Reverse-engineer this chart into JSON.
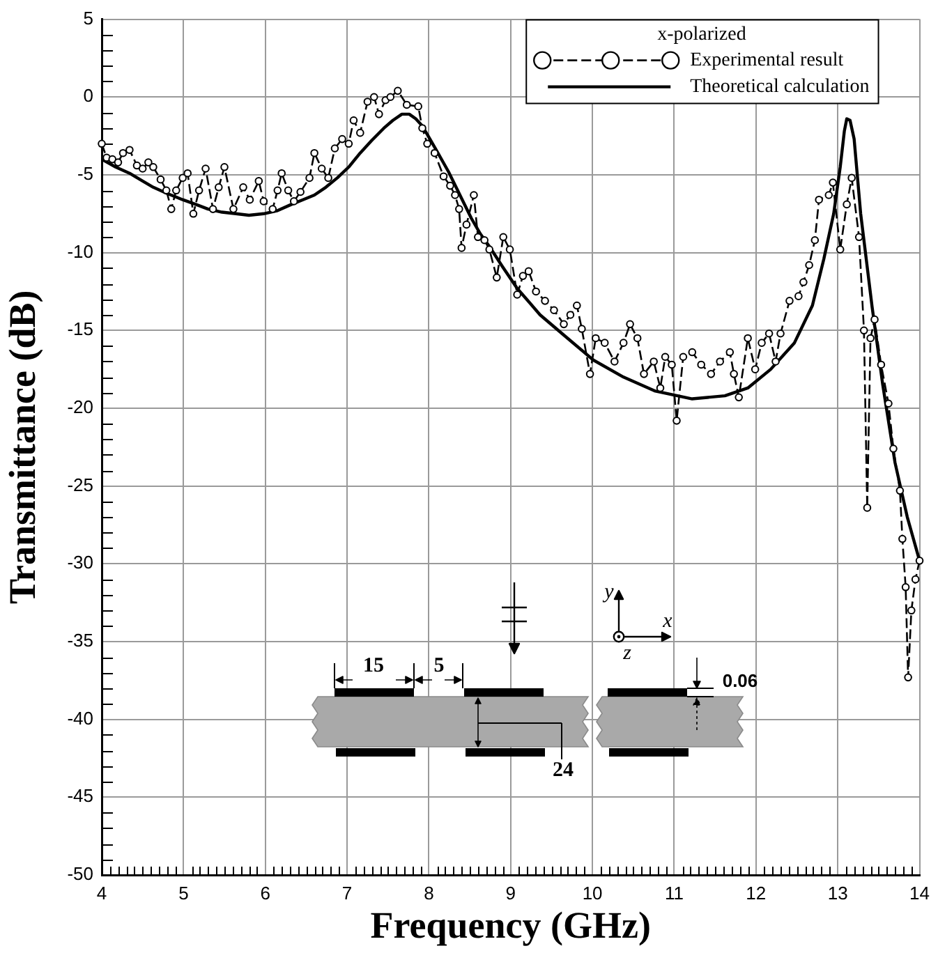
{
  "chart_data": {
    "type": "line",
    "xlabel": "Frequency (GHz)",
    "ylabel": "Transmittance (dB)",
    "legend_title": "x-polarized",
    "legend": "top right",
    "grid": true,
    "xlim": [
      4,
      14
    ],
    "ylim": [
      -50,
      5
    ],
    "xticks": [
      4,
      {
        "value": 4.1,
        "label": null
      },
      {
        "value": 4.2,
        "label": null
      },
      {
        "value": 4.3,
        "label": null
      },
      {
        "value": 4.4,
        "label": null
      },
      {
        "value": 4.5,
        "label": null
      },
      {
        "value": 4.6,
        "label": null
      },
      {
        "value": 4.7,
        "label": null
      },
      {
        "value": 4.8,
        "label": null
      },
      {
        "value": 4.9,
        "label": null
      },
      5,
      {
        "value": 5.1,
        "label": null
      },
      {
        "value": 5.2,
        "label": null
      },
      {
        "value": 5.3,
        "label": null
      },
      {
        "value": 5.4,
        "label": null
      },
      {
        "value": 5.5,
        "label": null
      },
      {
        "value": 5.6,
        "label": null
      },
      {
        "value": 5.7,
        "label": null
      },
      {
        "value": 5.8,
        "label": null
      },
      {
        "value": 5.9,
        "label": null
      },
      6,
      {
        "value": 6.1,
        "label": null
      },
      {
        "value": 6.2,
        "label": null
      },
      {
        "value": 6.3,
        "label": null
      },
      {
        "value": 6.4,
        "label": null
      },
      {
        "value": 6.5,
        "label": null
      },
      {
        "value": 6.6,
        "label": null
      },
      {
        "value": 6.7,
        "label": null
      },
      {
        "value": 6.8,
        "label": null
      },
      {
        "value": 6.9,
        "label": null
      },
      7,
      {
        "value": 7.1,
        "label": null
      },
      {
        "value": 7.2,
        "label": null
      },
      {
        "value": 7.3,
        "label": null
      },
      {
        "value": 7.4,
        "label": null
      },
      {
        "value": 7.5,
        "label": null
      },
      {
        "value": 7.6,
        "label": null
      },
      {
        "value": 7.7,
        "label": null
      },
      {
        "value": 7.8,
        "label": null
      },
      {
        "value": 7.9,
        "label": null
      },
      8,
      {
        "value": 8.1,
        "label": null
      },
      {
        "value": 8.2,
        "label": null
      },
      {
        "value": 8.3,
        "label": null
      },
      {
        "value": 8.4,
        "label": null
      },
      {
        "value": 8.5,
        "label": null
      },
      {
        "value": 8.6,
        "label": null
      },
      {
        "value": 8.7,
        "label": null
      },
      {
        "value": 8.8,
        "label": null
      },
      {
        "value": 8.9,
        "label": null
      },
      9,
      {
        "value": 9.1,
        "label": null
      },
      {
        "value": 9.2,
        "label": null
      },
      {
        "value": 9.3,
        "label": null
      },
      {
        "value": 9.4,
        "label": null
      },
      {
        "value": 9.5,
        "label": null
      },
      {
        "value": 9.6,
        "label": null
      },
      {
        "value": 9.7,
        "label": null
      },
      {
        "value": 9.8,
        "label": null
      },
      {
        "value": 9.9,
        "label": null
      },
      10,
      {
        "value": 10.1,
        "label": null
      },
      {
        "value": 10.2,
        "label": null
      },
      {
        "value": 10.3,
        "label": null
      },
      {
        "value": 10.4,
        "label": null
      },
      {
        "value": 10.5,
        "label": null
      },
      {
        "value": 10.6,
        "label": null
      },
      {
        "value": 10.7,
        "label": null
      },
      {
        "value": 10.8,
        "label": null
      },
      {
        "value": 10.9,
        "label": null
      },
      11,
      {
        "value": 11.1,
        "label": null
      },
      {
        "value": 11.2,
        "label": null
      },
      {
        "value": 11.3,
        "label": null
      },
      {
        "value": 11.4,
        "label": null
      },
      {
        "value": 11.5,
        "label": null
      },
      {
        "value": 11.6,
        "label": null
      },
      {
        "value": 11.7,
        "label": null
      },
      {
        "value": 11.8,
        "label": null
      },
      {
        "value": 11.9,
        "label": null
      },
      12,
      {
        "value": 12.1,
        "label": null
      },
      {
        "value": 12.2,
        "label": null
      },
      {
        "value": 12.3,
        "label": null
      },
      {
        "value": 12.4,
        "label": null
      },
      {
        "value": 12.5,
        "label": null
      },
      {
        "value": 12.6,
        "label": null
      },
      {
        "value": 12.7,
        "label": null
      },
      {
        "value": 12.8,
        "label": null
      },
      {
        "value": 12.9,
        "label": null
      },
      13,
      {
        "value": 13.1,
        "label": null
      },
      {
        "value": 13.2,
        "label": null
      },
      {
        "value": 13.3,
        "label": null
      },
      {
        "value": 13.4,
        "label": null
      },
      {
        "value": 13.5,
        "label": null
      },
      {
        "value": 13.6,
        "label": null
      },
      {
        "value": 13.7,
        "label": null
      },
      {
        "value": 13.8,
        "label": null
      },
      {
        "value": 13.9,
        "label": null
      },
      14
    ],
    "yticks": [
      -50,
      {
        "value": -49,
        "label": null
      },
      {
        "value": -48,
        "label": null
      },
      {
        "value": -47,
        "label": null
      },
      {
        "value": -46,
        "label": null
      },
      -45,
      {
        "value": -44,
        "label": null
      },
      {
        "value": -43,
        "label": null
      },
      {
        "value": -42,
        "label": null
      },
      {
        "value": -41,
        "label": null
      },
      -40,
      {
        "value": -39,
        "label": null
      },
      {
        "value": -38,
        "label": null
      },
      {
        "value": -37,
        "label": null
      },
      {
        "value": -36,
        "label": null
      },
      -35,
      {
        "value": -34,
        "label": null
      },
      {
        "value": -33,
        "label": null
      },
      {
        "value": -32,
        "label": null
      },
      {
        "value": -31,
        "label": null
      },
      -30,
      {
        "value": -29,
        "label": null
      },
      {
        "value": -28,
        "label": null
      },
      {
        "value": -27,
        "label": null
      },
      {
        "value": -26,
        "label": null
      },
      -25,
      {
        "value": -24,
        "label": null
      },
      {
        "value": -23,
        "label": null
      },
      {
        "value": -22,
        "label": null
      },
      {
        "value": -21,
        "label": null
      },
      -20,
      {
        "value": -19,
        "label": null
      },
      {
        "value": -18,
        "label": null
      },
      {
        "value": -17,
        "label": null
      },
      {
        "value": -16,
        "label": null
      },
      -15,
      {
        "value": -14,
        "label": null
      },
      {
        "value": -13,
        "label": null
      },
      {
        "value": -12,
        "label": null
      },
      {
        "value": -11,
        "label": null
      },
      -10,
      {
        "value": -9,
        "label": null
      },
      {
        "value": -8,
        "label": null
      },
      {
        "value": -7,
        "label": null
      },
      {
        "value": -6,
        "label": null
      },
      -5,
      {
        "value": -4,
        "label": null
      },
      {
        "value": -3,
        "label": null
      },
      {
        "value": -2,
        "label": null
      },
      {
        "value": -1,
        "label": null
      },
      0,
      {
        "value": 1,
        "label": null
      },
      {
        "value": 2,
        "label": null
      },
      {
        "value": 3,
        "label": null
      },
      {
        "value": 4,
        "label": null
      },
      5
    ],
    "annotations": [
      "15",
      "5",
      "24",
      "0.06",
      "y",
      "x",
      "z"
    ],
    "series": [
      {
        "name": "Experimental result",
        "color": "#000000",
        "marker": "circle",
        "line_style": "dashed",
        "x": [
          4.0,
          4.06,
          4.13,
          4.2,
          4.26,
          4.34,
          4.43,
          4.5,
          4.57,
          4.63,
          4.72,
          4.79,
          4.85,
          4.91,
          4.99,
          5.05,
          5.12,
          5.19,
          5.27,
          5.36,
          5.43,
          5.5,
          5.61,
          5.73,
          5.81,
          5.92,
          5.98,
          6.09,
          6.15,
          6.2,
          6.28,
          6.35,
          6.43,
          6.54,
          6.6,
          6.69,
          6.77,
          6.85,
          6.94,
          7.02,
          7.08,
          7.16,
          7.25,
          7.33,
          7.39,
          7.47,
          7.53,
          7.62,
          7.73,
          7.87,
          7.92,
          7.98,
          8.07,
          8.18,
          8.26,
          8.32,
          8.37,
          8.4,
          8.46,
          8.55,
          8.6,
          8.68,
          8.74,
          8.83,
          8.91,
          8.99,
          9.08,
          9.15,
          9.22,
          9.31,
          9.42,
          9.53,
          9.65,
          9.73,
          9.81,
          9.87,
          9.97,
          10.04,
          10.15,
          10.27,
          10.38,
          10.46,
          10.55,
          10.63,
          10.75,
          10.83,
          10.89,
          10.97,
          11.03,
          11.11,
          11.22,
          11.33,
          11.45,
          11.56,
          11.68,
          11.73,
          11.79,
          11.9,
          11.99,
          12.07,
          12.16,
          12.24,
          12.3,
          12.41,
          12.52,
          12.58,
          12.65,
          12.72,
          12.77,
          12.89,
          12.94,
          13.03,
          13.11,
          13.17,
          13.26,
          13.32,
          13.36,
          13.4,
          13.45,
          13.53,
          13.62,
          13.68,
          13.76,
          13.79,
          13.83,
          13.86,
          13.9,
          13.95,
          14.0
        ],
        "values": [
          -3.0,
          -3.9,
          -4.0,
          -4.2,
          -3.6,
          -3.4,
          -4.4,
          -4.6,
          -4.2,
          -4.5,
          -5.3,
          -6.0,
          -7.2,
          -6.0,
          -5.2,
          -4.9,
          -7.5,
          -6.0,
          -4.6,
          -7.2,
          -5.8,
          -4.5,
          -7.2,
          -5.8,
          -6.6,
          -5.4,
          -6.7,
          -7.2,
          -6.0,
          -4.9,
          -6.0,
          -6.7,
          -6.1,
          -5.2,
          -3.6,
          -4.6,
          -5.2,
          -3.3,
          -2.7,
          -3.0,
          -1.5,
          -2.3,
          -0.3,
          0.0,
          -1.1,
          -0.2,
          0.0,
          0.4,
          -0.5,
          -0.6,
          -2.0,
          -3.0,
          -3.6,
          -5.1,
          -5.7,
          -6.3,
          -7.2,
          -9.7,
          -8.2,
          -6.3,
          -9.0,
          -9.2,
          -9.8,
          -11.6,
          -9.0,
          -9.8,
          -12.7,
          -11.5,
          -11.2,
          -12.5,
          -13.1,
          -13.7,
          -14.6,
          -14.0,
          -13.4,
          -14.9,
          -17.8,
          -15.5,
          -15.8,
          -17.0,
          -15.8,
          -14.6,
          -15.5,
          -17.8,
          -17.0,
          -18.7,
          -16.7,
          -17.2,
          -20.8,
          -16.7,
          -16.4,
          -17.2,
          -17.8,
          -17.0,
          -16.4,
          -17.8,
          -19.3,
          -15.5,
          -17.5,
          -15.8,
          -15.2,
          -17.0,
          -15.2,
          -13.1,
          -12.8,
          -11.9,
          -10.8,
          -9.2,
          -6.6,
          -6.3,
          -5.5,
          -9.8,
          -6.9,
          -5.2,
          -9.0,
          -15.0,
          -26.4,
          -15.5,
          -14.3,
          -17.2,
          -19.7,
          -22.6,
          -25.3,
          -28.4,
          -31.5,
          -37.3,
          -33.0,
          -31.0,
          -29.8
        ]
      },
      {
        "name": "Theoretical calculation",
        "color": "#000000",
        "marker": "none",
        "line_style": "solid",
        "x": [
          4.0,
          4.17,
          4.34,
          4.5,
          4.63,
          4.8,
          4.99,
          5.15,
          5.3,
          5.47,
          5.64,
          5.8,
          5.98,
          6.15,
          6.32,
          6.46,
          6.6,
          6.74,
          6.88,
          7.02,
          7.16,
          7.3,
          7.45,
          7.56,
          7.67,
          7.76,
          7.84,
          7.91,
          7.98,
          8.1,
          8.24,
          8.38,
          8.52,
          8.63,
          8.74,
          8.9,
          9.08,
          9.36,
          9.65,
          10.01,
          10.38,
          10.77,
          11.22,
          11.62,
          11.9,
          12.18,
          12.47,
          12.69,
          12.83,
          12.95,
          13.03,
          13.08,
          13.11,
          13.15,
          13.2,
          13.28,
          13.42,
          13.55,
          13.7,
          13.85,
          14.0
        ],
        "values": [
          -4.0,
          -4.5,
          -4.9,
          -5.4,
          -5.8,
          -6.2,
          -6.6,
          -6.9,
          -7.2,
          -7.4,
          -7.5,
          -7.6,
          -7.5,
          -7.3,
          -6.9,
          -6.6,
          -6.3,
          -5.8,
          -5.2,
          -4.5,
          -3.6,
          -2.8,
          -2.0,
          -1.5,
          -1.1,
          -1.1,
          -1.4,
          -1.8,
          -2.4,
          -3.5,
          -4.8,
          -6.3,
          -7.8,
          -8.8,
          -9.6,
          -10.9,
          -12.3,
          -14.0,
          -15.3,
          -16.9,
          -18.0,
          -18.9,
          -19.4,
          -19.2,
          -18.7,
          -17.5,
          -15.8,
          -13.4,
          -10.4,
          -7.5,
          -4.5,
          -2.2,
          -1.4,
          -1.5,
          -2.7,
          -7.5,
          -13.5,
          -18.5,
          -23.5,
          -27.0,
          -29.8
        ]
      }
    ]
  }
}
